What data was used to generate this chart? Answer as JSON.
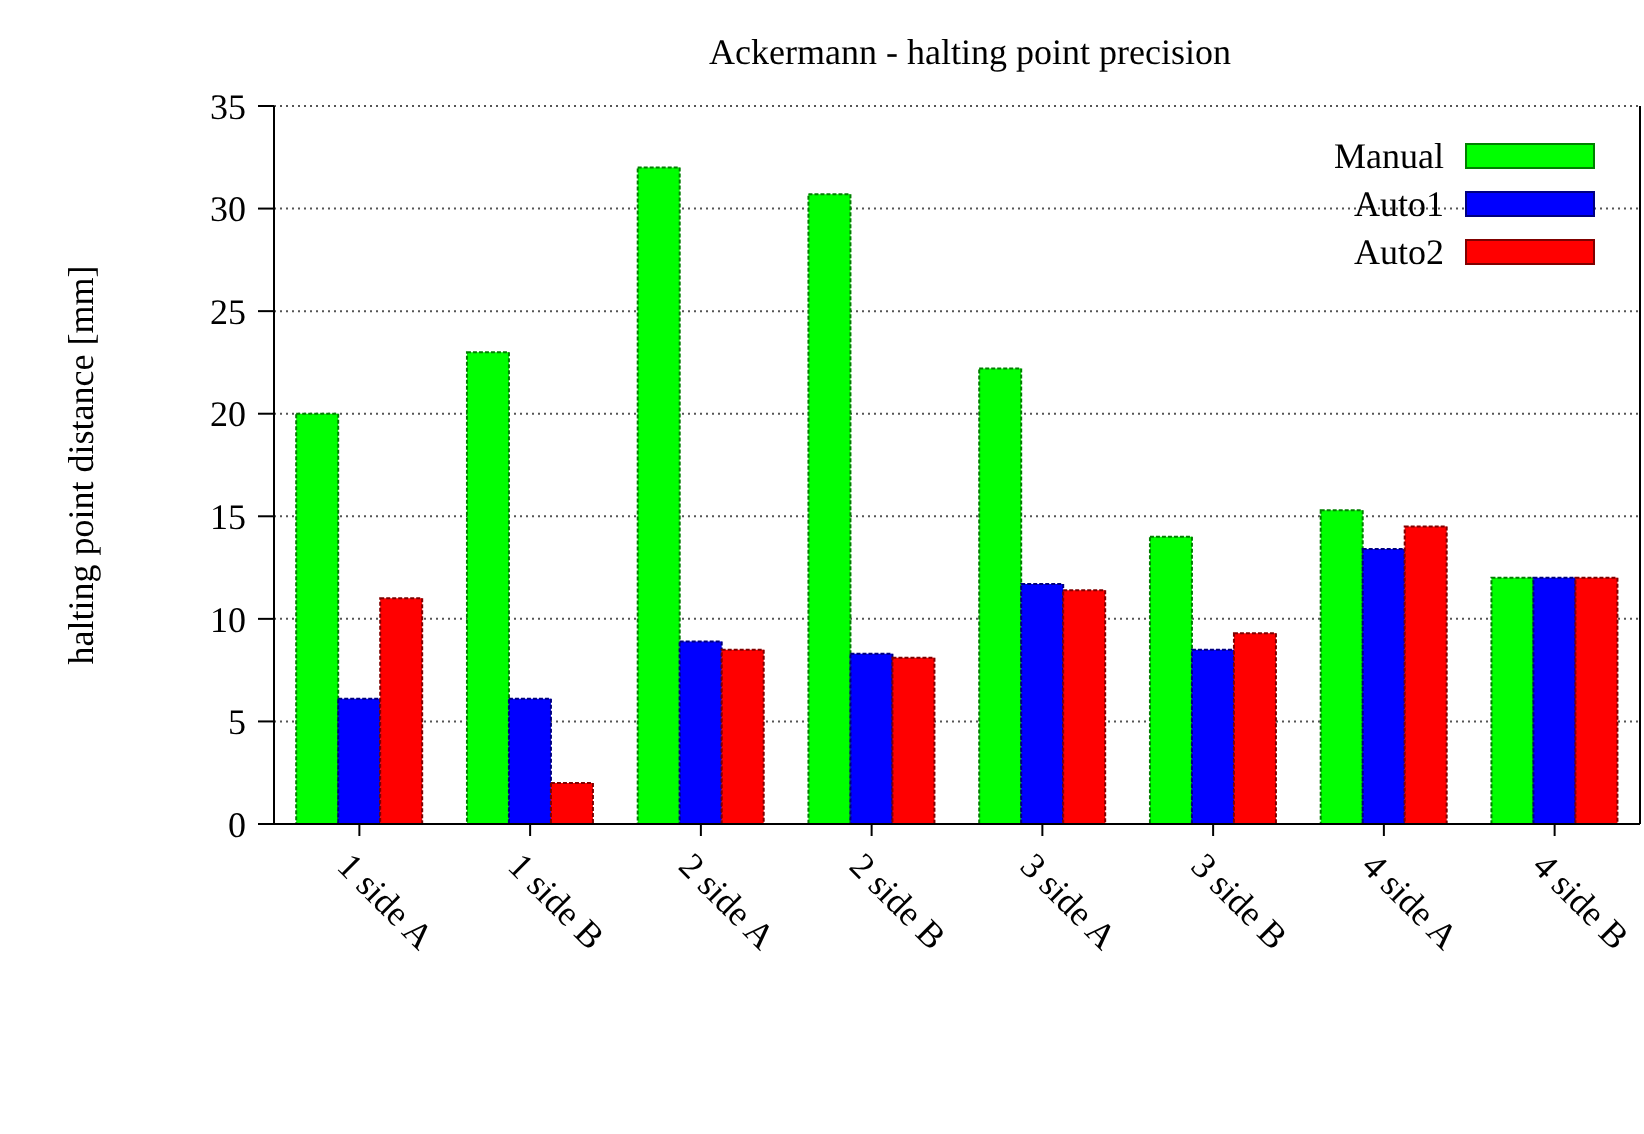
{
  "chart_data": {
    "type": "bar",
    "title": "Ackermann - halting point precision",
    "ylabel": "halting point distance [mm]",
    "categories": [
      "1 side A",
      "1 side B",
      "2 side A",
      "2 side B",
      "3 side A",
      "3 side B",
      "4 side A",
      "4 side B"
    ],
    "series": [
      {
        "name": "Manual",
        "color": "#00ff00",
        "values": [
          20,
          23,
          32,
          30.7,
          22.2,
          14,
          15.3,
          12
        ]
      },
      {
        "name": "Auto1",
        "color": "#0000ff",
        "values": [
          6.1,
          6.1,
          8.9,
          8.3,
          11.7,
          8.5,
          13.4,
          12
        ]
      },
      {
        "name": "Auto2",
        "color": "#ff0000",
        "values": [
          11,
          2,
          8.5,
          8.1,
          11.4,
          9.3,
          14.5,
          12
        ]
      }
    ],
    "ylim": [
      0,
      35
    ],
    "yticks": [
      0,
      5,
      10,
      15,
      20,
      25,
      30,
      35
    ],
    "grid": "y",
    "legend": "top right"
  }
}
